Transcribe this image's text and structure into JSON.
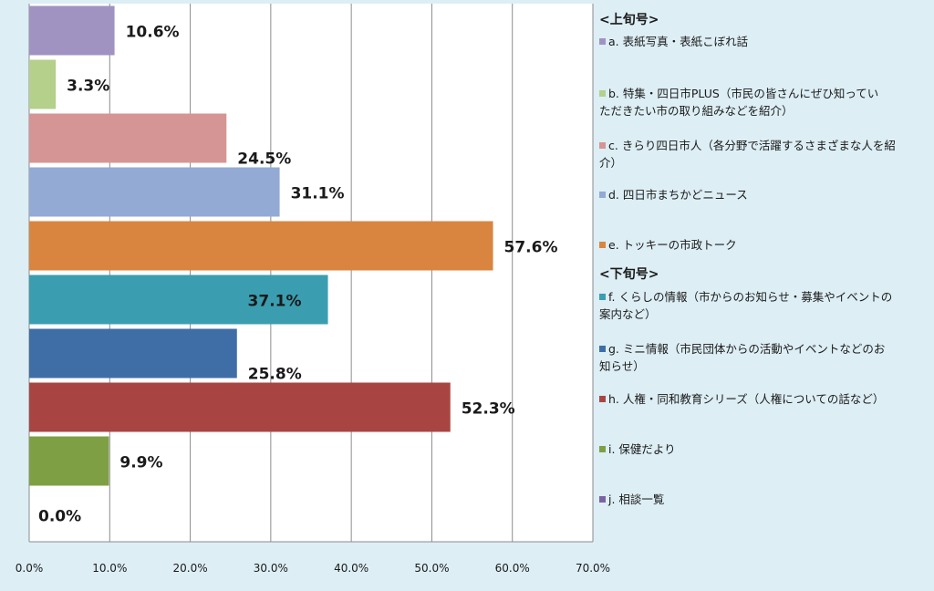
{
  "chart_data": {
    "type": "bar",
    "orientation": "horizontal",
    "title": "",
    "xlabel": "",
    "ylabel": "",
    "xlim": [
      0,
      70
    ],
    "grid": true,
    "legend_position": "right",
    "x_ticks": [
      "0.0%",
      "10.0%",
      "20.0%",
      "30.0%",
      "40.0%",
      "50.0%",
      "60.0%",
      "70.0%"
    ],
    "x_tick_values": [
      0,
      10,
      20,
      30,
      40,
      50,
      60,
      70
    ],
    "categories": [
      "a. 表紙写真・表紙こぼれ話",
      "b. 特集・四日市PLUS（市民の皆さんにぜひ知っていただきたい市の取り組みなどを紹介）",
      "c. きらり四日市人（各分野で活躍するさまざまな人を紹介）",
      "d. 四日市まちかどニュース",
      "e. トッキーの市政トーク",
      "f. くらしの情報（市からのお知らせ・募集やイベントの案内など）",
      "g. ミニ情報（市民団体からの活動やイベントなどのお知らせ）",
      "h. 人権・同和教育シリーズ（人権についての話など）",
      "i. 保健だより",
      "j. 相談一覧"
    ],
    "values": [
      10.6,
      3.3,
      24.5,
      31.1,
      57.6,
      37.1,
      25.8,
      52.3,
      9.9,
      0.0
    ],
    "data_labels": [
      "10.6%",
      "3.3%",
      "24.5%",
      "31.1%",
      "57.6%",
      "37.1%",
      "25.8%",
      "52.3%",
      "9.9%",
      "0.0%"
    ],
    "colors": [
      "#a093c2",
      "#b4d08b",
      "#d59594",
      "#93aad5",
      "#d9853f",
      "#3a9eb0",
      "#3f6ea6",
      "#a84543",
      "#7e9f44",
      "#7b62a4"
    ],
    "legend": {
      "header_upper": "<上旬号>",
      "header_lower": "<下旬号>",
      "entries": [
        [
          "a. 表紙写真・表紙こぼれ話"
        ],
        [
          "b. 特集・四日市PLUS（市民の皆さんにぜひ知ってい",
          "ただきたい市の取り組みなどを紹介）"
        ],
        [
          "c. きらり四日市人（各分野で活躍するさまざまな人を紹",
          "介）"
        ],
        [
          "d. 四日市まちかどニュース"
        ],
        [
          "e. トッキーの市政トーク"
        ],
        [
          "f. くらしの情報（市からのお知らせ・募集やイベントの",
          "案内など）"
        ],
        [
          "g. ミニ情報（市民団体からの活動やイベントなどのお",
          "知らせ）"
        ],
        [
          "h. 人権・同和教育シリーズ（人権についての話など）"
        ],
        [
          "i. 保健だより"
        ],
        [
          "j. 相談一覧"
        ]
      ]
    }
  }
}
